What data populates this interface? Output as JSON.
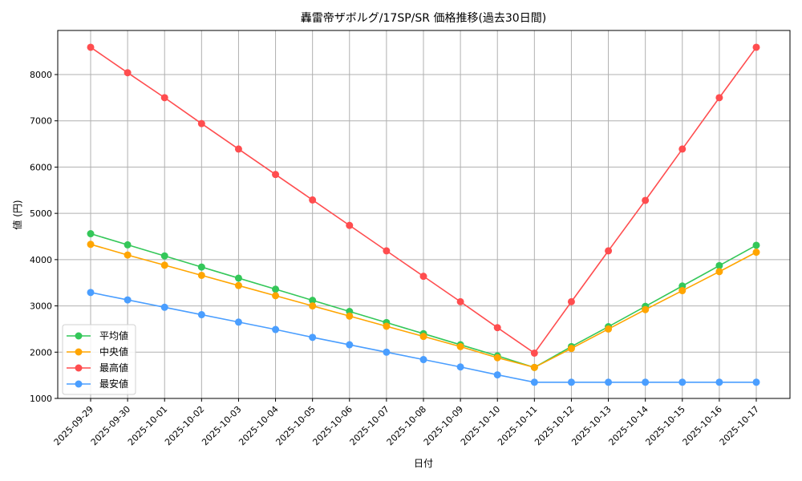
{
  "chart_data": {
    "type": "line",
    "title": "轟雷帝ザボルグ/17SP/SR 価格推移(過去30日間)",
    "xlabel": "日付",
    "ylabel": "値 (円)",
    "ylim": [
      1000,
      8950
    ],
    "yticks": [
      1000,
      2000,
      3000,
      4000,
      5000,
      6000,
      7000,
      8000
    ],
    "grid": true,
    "legend_position": "lower left",
    "categories": [
      "2025-09-29",
      "2025-09-30",
      "2025-10-01",
      "2025-10-02",
      "2025-10-03",
      "2025-10-04",
      "2025-10-05",
      "2025-10-06",
      "2025-10-07",
      "2025-10-08",
      "2025-10-09",
      "2025-10-10",
      "2025-10-11",
      "2025-10-12",
      "2025-10-13",
      "2025-10-14",
      "2025-10-15",
      "2025-10-16",
      "2025-10-17"
    ],
    "series": [
      {
        "name": "平均値",
        "color": "#34c759",
        "values": [
          4560,
          4320,
          4080,
          3840,
          3600,
          3360,
          3120,
          2880,
          2640,
          2400,
          2160,
          1920,
          1670,
          2120,
          2550,
          2990,
          3430,
          3870,
          4310
        ]
      },
      {
        "name": "中央値",
        "color": "#ffa500",
        "values": [
          4330,
          4100,
          3880,
          3660,
          3440,
          3220,
          3000,
          2780,
          2560,
          2340,
          2120,
          1880,
          1670,
          2080,
          2500,
          2920,
          3330,
          3740,
          4160
        ]
      },
      {
        "name": "最高値",
        "color": "#ff4d4f",
        "values": [
          8590,
          8040,
          7500,
          6940,
          6390,
          5840,
          5290,
          4740,
          4190,
          3640,
          3090,
          2530,
          1980,
          3090,
          4190,
          5280,
          6390,
          7500,
          8590
        ]
      },
      {
        "name": "最安値",
        "color": "#4a9eff",
        "values": [
          3290,
          3130,
          2970,
          2810,
          2650,
          2490,
          2320,
          2160,
          2000,
          1840,
          1680,
          1510,
          1350,
          1350,
          1350,
          1350,
          1350,
          1350,
          1350
        ]
      }
    ]
  }
}
